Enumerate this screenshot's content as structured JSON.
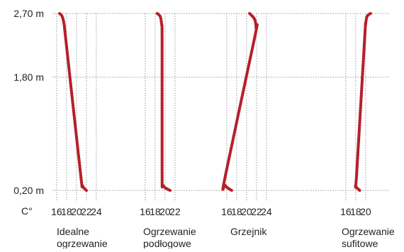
{
  "chart_data": {
    "type": "line",
    "unit_label": "C°",
    "y_tick_labels": [
      "2,70 m",
      "1,80 m",
      "0,20 m"
    ],
    "y_ticks": [
      2.7,
      1.8,
      0.2
    ],
    "ylim": [
      0.2,
      2.7
    ],
    "colors": {
      "curve": "#b5202a",
      "grid": "#9a9a9a"
    },
    "grid": true,
    "panels": [
      {
        "label_lines": [
          "Idealne",
          "ogrzewanie"
        ],
        "x_ticks": [
          16,
          18,
          20,
          22,
          24
        ],
        "xlim": [
          15.3,
          25.3
        ],
        "series": [
          {
            "temp": 16.6,
            "height": 2.7
          },
          {
            "temp": 17.1,
            "height": 2.66
          },
          {
            "temp": 17.5,
            "height": 2.55
          },
          {
            "temp": 17.9,
            "height": 2.3
          },
          {
            "temp": 20.8,
            "height": 0.45
          },
          {
            "temp": 21.2,
            "height": 0.27
          },
          {
            "temp": 22.0,
            "height": 0.2
          }
        ]
      },
      {
        "label_lines": [
          "Ogrzewanie",
          "podłogowe"
        ],
        "x_ticks": [
          16,
          18,
          20,
          22
        ],
        "xlim": [
          15.3,
          23.5
        ],
        "series": [
          {
            "temp": 18.4,
            "height": 2.7
          },
          {
            "temp": 19.0,
            "height": 2.66
          },
          {
            "temp": 19.3,
            "height": 2.55
          },
          {
            "temp": 19.4,
            "height": 2.3
          },
          {
            "temp": 19.4,
            "height": 0.45
          },
          {
            "temp": 19.6,
            "height": 0.27
          },
          {
            "temp": 21.0,
            "height": 0.2
          }
        ]
      },
      {
        "label_lines": [
          "Grzejnik"
        ],
        "x_ticks": [
          16,
          18,
          20,
          22,
          24
        ],
        "xlim": [
          15.3,
          25.3
        ],
        "series": [
          {
            "temp": 20.6,
            "height": 2.7
          },
          {
            "temp": 21.6,
            "height": 2.62
          },
          {
            "temp": 21.9,
            "height": 2.5
          },
          {
            "temp": 21.6,
            "height": 2.35
          },
          {
            "temp": 15.7,
            "height": 0.4
          },
          {
            "temp": 15.7,
            "height": 0.27
          },
          {
            "temp": 17.0,
            "height": 0.2
          }
        ]
      },
      {
        "label_lines": [
          "Ogrzewanie",
          "sufitowe"
        ],
        "x_ticks": [
          16,
          18,
          20
        ],
        "xlim": [
          15.3,
          21.3
        ],
        "series": [
          {
            "temp": 21.0,
            "height": 2.7
          },
          {
            "temp": 20.3,
            "height": 2.66
          },
          {
            "temp": 20.0,
            "height": 2.55
          },
          {
            "temp": 19.8,
            "height": 2.35
          },
          {
            "temp": 18.2,
            "height": 0.45
          },
          {
            "temp": 18.0,
            "height": 0.27
          },
          {
            "temp": 18.8,
            "height": 0.2
          }
        ]
      }
    ]
  }
}
